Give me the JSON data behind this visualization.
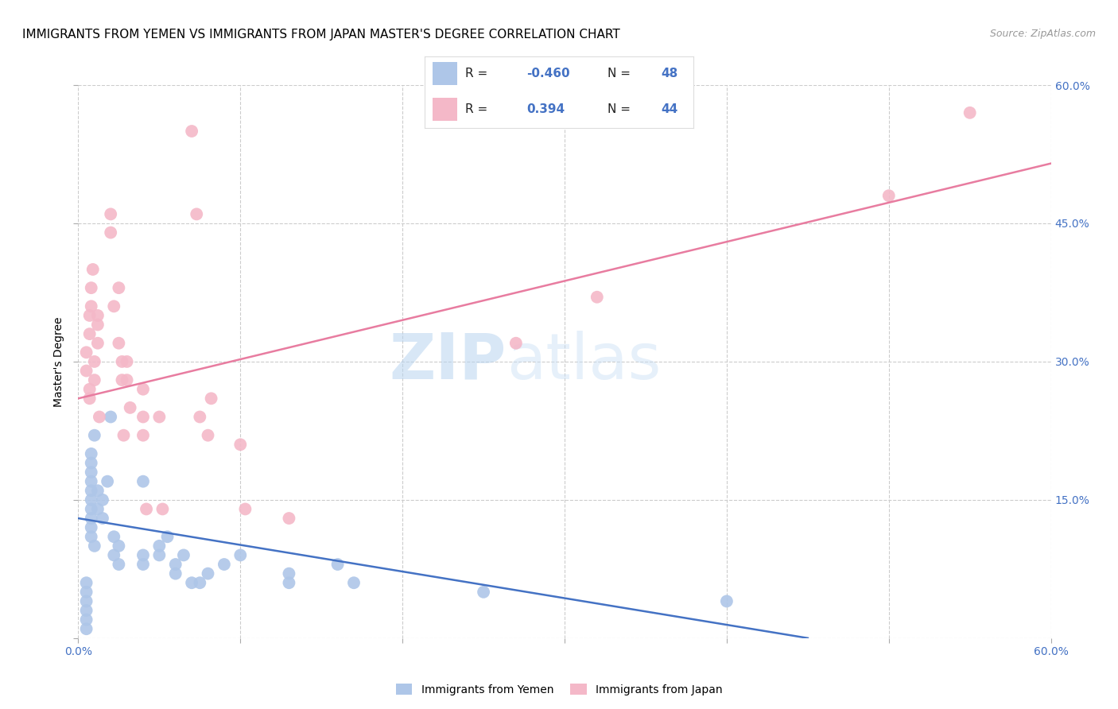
{
  "title": "IMMIGRANTS FROM YEMEN VS IMMIGRANTS FROM JAPAN MASTER'S DEGREE CORRELATION CHART",
  "source": "Source: ZipAtlas.com",
  "ylabel": "Master's Degree",
  "watermark_zip": "ZIP",
  "watermark_atlas": "atlas",
  "xlim": [
    0,
    0.6
  ],
  "ylim": [
    0,
    0.6
  ],
  "yemen_color": "#aec6e8",
  "japan_color": "#f4b8c8",
  "yemen_line_color": "#4472c4",
  "japan_line_color": "#e87ca0",
  "yemen_scatter": [
    [
      0.005,
      0.01
    ],
    [
      0.005,
      0.02
    ],
    [
      0.005,
      0.03
    ],
    [
      0.005,
      0.04
    ],
    [
      0.005,
      0.05
    ],
    [
      0.008,
      0.13
    ],
    [
      0.008,
      0.14
    ],
    [
      0.008,
      0.15
    ],
    [
      0.008,
      0.16
    ],
    [
      0.008,
      0.17
    ],
    [
      0.008,
      0.18
    ],
    [
      0.008,
      0.19
    ],
    [
      0.008,
      0.2
    ],
    [
      0.008,
      0.12
    ],
    [
      0.008,
      0.11
    ],
    [
      0.01,
      0.22
    ],
    [
      0.01,
      0.1
    ],
    [
      0.012,
      0.14
    ],
    [
      0.012,
      0.16
    ],
    [
      0.015,
      0.13
    ],
    [
      0.015,
      0.15
    ],
    [
      0.018,
      0.17
    ],
    [
      0.02,
      0.24
    ],
    [
      0.022,
      0.11
    ],
    [
      0.022,
      0.09
    ],
    [
      0.025,
      0.1
    ],
    [
      0.025,
      0.08
    ],
    [
      0.04,
      0.17
    ],
    [
      0.04,
      0.09
    ],
    [
      0.04,
      0.08
    ],
    [
      0.05,
      0.09
    ],
    [
      0.05,
      0.1
    ],
    [
      0.055,
      0.11
    ],
    [
      0.06,
      0.07
    ],
    [
      0.06,
      0.08
    ],
    [
      0.065,
      0.09
    ],
    [
      0.07,
      0.06
    ],
    [
      0.075,
      0.06
    ],
    [
      0.08,
      0.07
    ],
    [
      0.09,
      0.08
    ],
    [
      0.1,
      0.09
    ],
    [
      0.13,
      0.07
    ],
    [
      0.13,
      0.06
    ],
    [
      0.16,
      0.08
    ],
    [
      0.17,
      0.06
    ],
    [
      0.25,
      0.05
    ],
    [
      0.4,
      0.04
    ],
    [
      0.005,
      0.06
    ]
  ],
  "japan_scatter": [
    [
      0.005,
      0.29
    ],
    [
      0.005,
      0.31
    ],
    [
      0.007,
      0.33
    ],
    [
      0.007,
      0.35
    ],
    [
      0.007,
      0.27
    ],
    [
      0.007,
      0.26
    ],
    [
      0.008,
      0.36
    ],
    [
      0.008,
      0.38
    ],
    [
      0.009,
      0.4
    ],
    [
      0.01,
      0.28
    ],
    [
      0.01,
      0.3
    ],
    [
      0.012,
      0.34
    ],
    [
      0.012,
      0.35
    ],
    [
      0.012,
      0.32
    ],
    [
      0.013,
      0.24
    ],
    [
      0.02,
      0.44
    ],
    [
      0.02,
      0.46
    ],
    [
      0.022,
      0.36
    ],
    [
      0.025,
      0.38
    ],
    [
      0.025,
      0.32
    ],
    [
      0.027,
      0.3
    ],
    [
      0.027,
      0.28
    ],
    [
      0.028,
      0.22
    ],
    [
      0.03,
      0.28
    ],
    [
      0.03,
      0.3
    ],
    [
      0.032,
      0.25
    ],
    [
      0.04,
      0.27
    ],
    [
      0.04,
      0.24
    ],
    [
      0.04,
      0.22
    ],
    [
      0.042,
      0.14
    ],
    [
      0.05,
      0.24
    ],
    [
      0.052,
      0.14
    ],
    [
      0.07,
      0.55
    ],
    [
      0.073,
      0.46
    ],
    [
      0.075,
      0.24
    ],
    [
      0.08,
      0.22
    ],
    [
      0.082,
      0.26
    ],
    [
      0.1,
      0.21
    ],
    [
      0.103,
      0.14
    ],
    [
      0.13,
      0.13
    ],
    [
      0.27,
      0.32
    ],
    [
      0.32,
      0.37
    ],
    [
      0.5,
      0.48
    ],
    [
      0.55,
      0.57
    ]
  ],
  "yemen_line": {
    "x0": 0.0,
    "y0": 0.13,
    "x1": 0.45,
    "y1": 0.0
  },
  "japan_line": {
    "x0": 0.0,
    "y0": 0.26,
    "x1": 0.6,
    "y1": 0.515
  },
  "grid_color": "#cccccc",
  "background_color": "#ffffff",
  "title_fontsize": 11,
  "label_fontsize": 10,
  "tick_color": "#4472c4",
  "legend_R1": "R = -0.460",
  "legend_N1": "N = 48",
  "legend_R2": "R =  0.394",
  "legend_N2": "N = 44",
  "bottom_legend_1": "Immigrants from Yemen",
  "bottom_legend_2": "Immigrants from Japan"
}
